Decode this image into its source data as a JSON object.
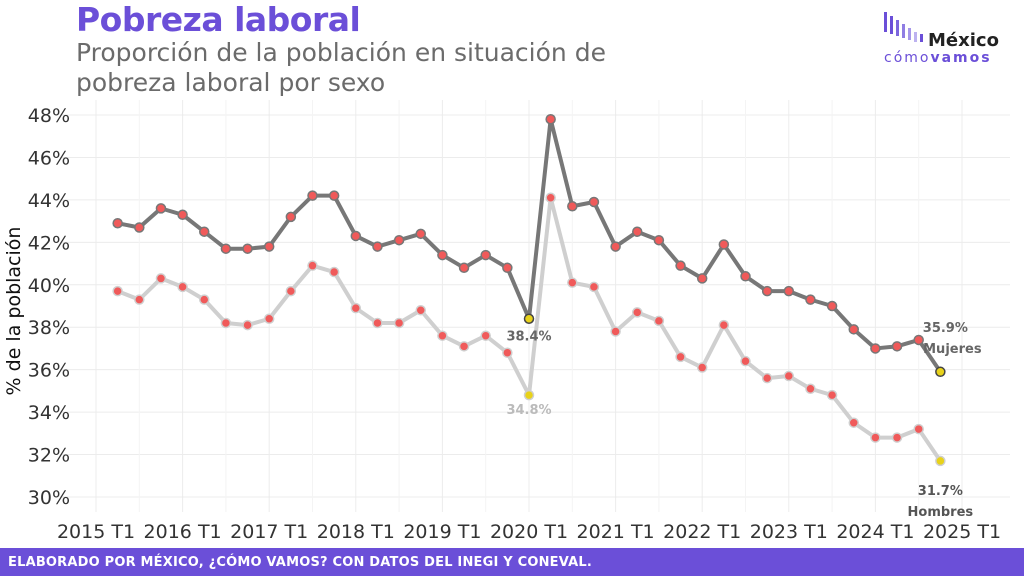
{
  "header": {
    "title": "Pobreza laboral",
    "subtitle": "Proporción de la población en situación de pobreza laboral por sexo"
  },
  "logo": {
    "line1": "México",
    "line2_a": "cómo",
    "line2_b": "vamos",
    "color": "#6b4fd8"
  },
  "footer": {
    "text": "ELABORADO POR MÉXICO, ¿CÓMO VAMOS? CON DATOS DEL INEGI Y CONEVAL.",
    "color": "#6b4fd8"
  },
  "chart_data": {
    "type": "line",
    "ylabel": "% de la población",
    "xlabel": "",
    "ylim": [
      30,
      48
    ],
    "y_ticks": [
      "30%",
      "32%",
      "34%",
      "36%",
      "38%",
      "40%",
      "42%",
      "44%",
      "46%",
      "48%"
    ],
    "x_ticks": [
      "2015 T1",
      "2016 T1",
      "2017 T1",
      "2018 T1",
      "2019 T1",
      "2020 T1",
      "2021 T1",
      "2022 T1",
      "2023 T1",
      "2024 T1",
      "2025 T1"
    ],
    "grid": true,
    "point_color": "#f05a5a",
    "highlight_color": "#e8d21a",
    "series": [
      {
        "name": "Mujeres",
        "color": "#777777",
        "values": [
          42.9,
          42.7,
          43.6,
          43.3,
          42.5,
          41.7,
          41.7,
          41.8,
          43.2,
          44.2,
          44.2,
          42.3,
          41.8,
          42.1,
          42.4,
          41.4,
          40.8,
          41.4,
          40.8,
          38.4,
          47.8,
          43.7,
          43.9,
          41.8,
          42.5,
          42.1,
          40.9,
          40.3,
          41.9,
          40.4,
          39.7,
          39.7,
          39.3,
          39.0,
          37.9,
          37.0,
          37.1,
          37.4,
          35.9
        ],
        "start_quarter": "2015 T2",
        "labels": [
          {
            "index": 19,
            "text": "38.4%"
          },
          {
            "index": 38,
            "text": "35.9%"
          },
          {
            "index": 38,
            "text": "Mujeres"
          }
        ]
      },
      {
        "name": "Hombres",
        "color": "#cfcfcf",
        "values": [
          39.7,
          39.3,
          40.3,
          39.9,
          39.3,
          38.2,
          38.1,
          38.4,
          39.7,
          40.9,
          40.6,
          38.9,
          38.2,
          38.2,
          38.8,
          37.6,
          37.1,
          37.6,
          36.8,
          34.8,
          44.1,
          40.1,
          39.9,
          37.8,
          38.7,
          38.3,
          36.6,
          36.1,
          38.1,
          36.4,
          35.6,
          35.7,
          35.1,
          34.8,
          33.5,
          32.8,
          32.8,
          33.2,
          31.7
        ],
        "start_quarter": "2015 T2",
        "labels": [
          {
            "index": 19,
            "text": "34.8%"
          },
          {
            "index": 38,
            "text": "31.7%"
          },
          {
            "index": 38,
            "text": "Hombres"
          }
        ]
      }
    ]
  }
}
